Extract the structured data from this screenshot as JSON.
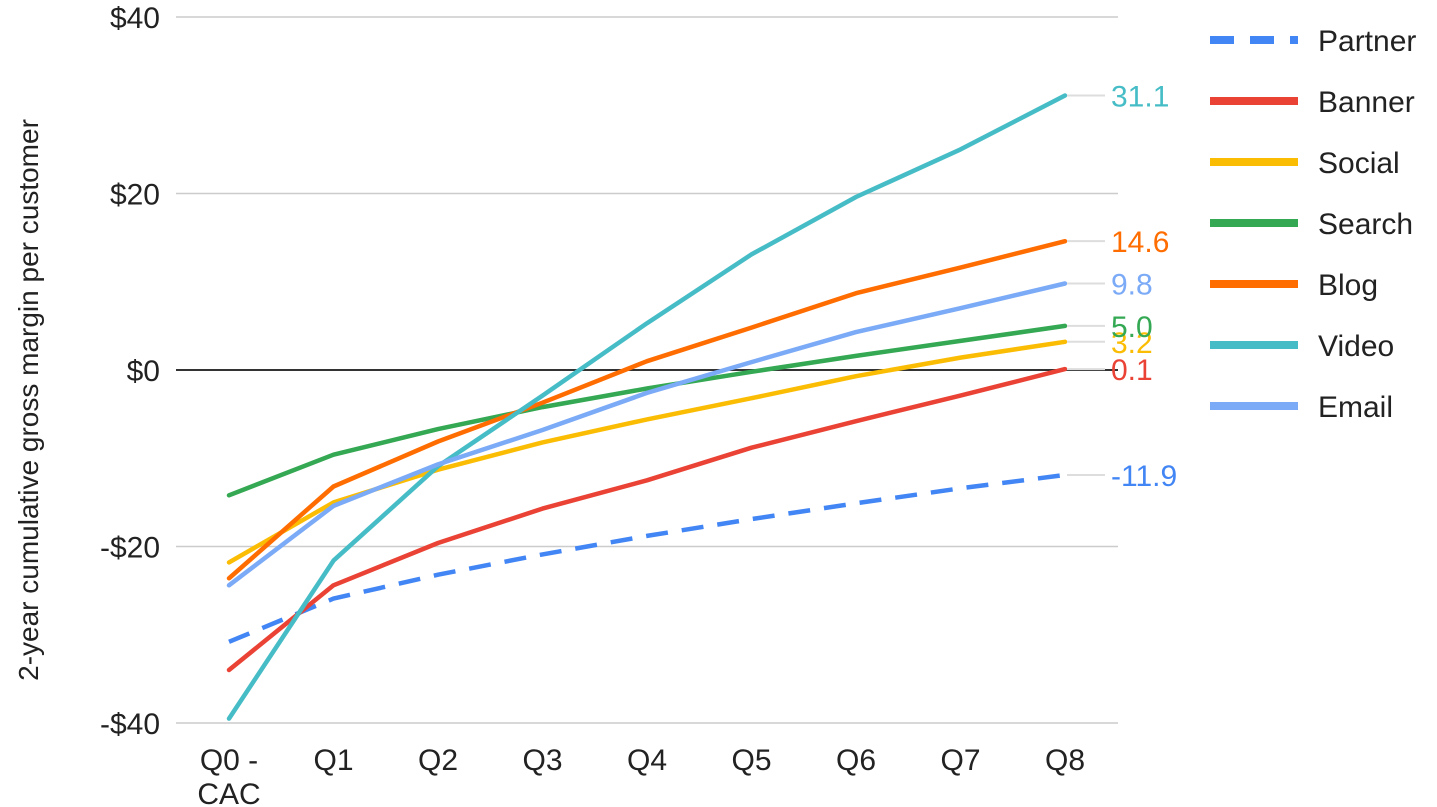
{
  "chart_data": {
    "type": "line",
    "title": "",
    "xlabel": "",
    "ylabel": "2-year cumulative gross margin per customer",
    "categories": [
      "Q0 - CAC",
      "Q1",
      "Q2",
      "Q3",
      "Q4",
      "Q5",
      "Q6",
      "Q7",
      "Q8"
    ],
    "y_ticks": [
      {
        "value": 40,
        "label": "$40"
      },
      {
        "value": 20,
        "label": "$20"
      },
      {
        "value": 0,
        "label": "$0"
      },
      {
        "value": -20,
        "label": "-$20"
      },
      {
        "value": -40,
        "label": "-$40"
      }
    ],
    "ylim": [
      -40,
      40
    ],
    "grid": true,
    "legend_position": "right",
    "series": [
      {
        "name": "Partner",
        "color": "#4285F4",
        "dashed": true,
        "values": [
          -30.8,
          -25.9,
          -23.2,
          -20.9,
          -18.8,
          -16.9,
          -15.1,
          -13.4,
          -11.9
        ],
        "end_label": "-11.9"
      },
      {
        "name": "Banner",
        "color": "#EA4335",
        "dashed": false,
        "values": [
          -34.0,
          -24.4,
          -19.6,
          -15.7,
          -12.5,
          -8.8,
          -5.8,
          -2.9,
          0.1
        ],
        "end_label": "0.1"
      },
      {
        "name": "Social",
        "color": "#FBBC04",
        "dashed": false,
        "values": [
          -21.8,
          -15.0,
          -11.3,
          -8.2,
          -5.6,
          -3.2,
          -0.7,
          1.4,
          3.2
        ],
        "end_label": "3.2"
      },
      {
        "name": "Search",
        "color": "#34A853",
        "dashed": false,
        "values": [
          -14.2,
          -9.6,
          -6.7,
          -4.2,
          -2.1,
          -0.2,
          1.6,
          3.3,
          5.0
        ],
        "end_label": "5.0"
      },
      {
        "name": "Blog",
        "color": "#FF6D01",
        "dashed": false,
        "values": [
          -23.6,
          -13.2,
          -8.1,
          -3.7,
          1.0,
          4.8,
          8.7,
          11.6,
          14.6
        ],
        "end_label": "14.6"
      },
      {
        "name": "Video",
        "color": "#46BDC6",
        "dashed": false,
        "values": [
          -39.5,
          -21.6,
          -10.9,
          -2.9,
          5.3,
          13.1,
          19.6,
          25.0,
          31.1
        ],
        "end_label": "31.1"
      },
      {
        "name": "Email",
        "color": "#7BAAF7",
        "dashed": false,
        "values": [
          -24.4,
          -15.4,
          -10.7,
          -6.8,
          -2.6,
          0.9,
          4.3,
          7.0,
          9.8
        ],
        "end_label": "9.8"
      }
    ]
  }
}
